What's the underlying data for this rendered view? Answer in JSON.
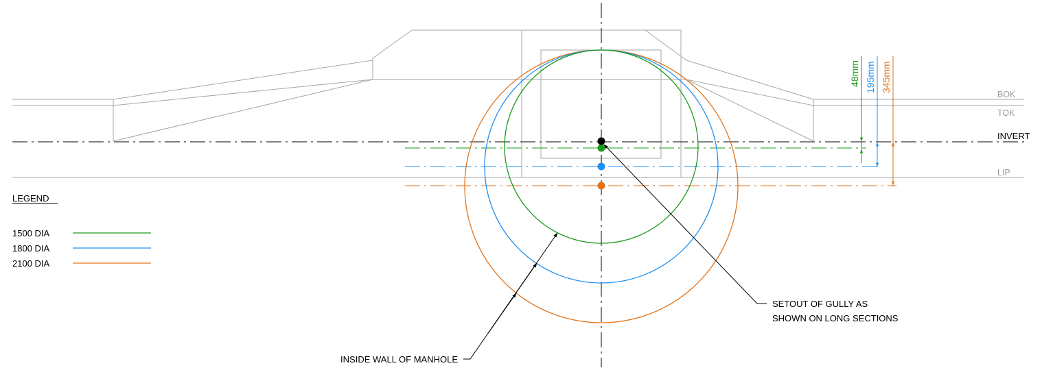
{
  "colors": {
    "outline": "#a6a6a6",
    "black": "#000000",
    "green": "#1a9a1a",
    "blue": "#1f8ff0",
    "orange": "#e2731a",
    "level_label": "#9a9a9a"
  },
  "levels": {
    "bok": "BOK",
    "tok": "TOK",
    "invert": "INVERT",
    "lip": "LIP"
  },
  "legend": {
    "title": "LEGEND",
    "items": [
      {
        "label": "1500 DIA",
        "color": "#1a9a1a"
      },
      {
        "label": "1800 DIA",
        "color": "#1f8ff0"
      },
      {
        "label": "2100 DIA",
        "color": "#e2731a"
      }
    ]
  },
  "dimensions": {
    "green": "48mm",
    "blue": "195mm",
    "orange": "345mm"
  },
  "annotations": {
    "inside_wall": "INSIDE WALL OF MANHOLE",
    "setout_line1": "SETOUT OF GULLY AS",
    "setout_line2": "SHOWN ON LONG SECTIONS"
  }
}
